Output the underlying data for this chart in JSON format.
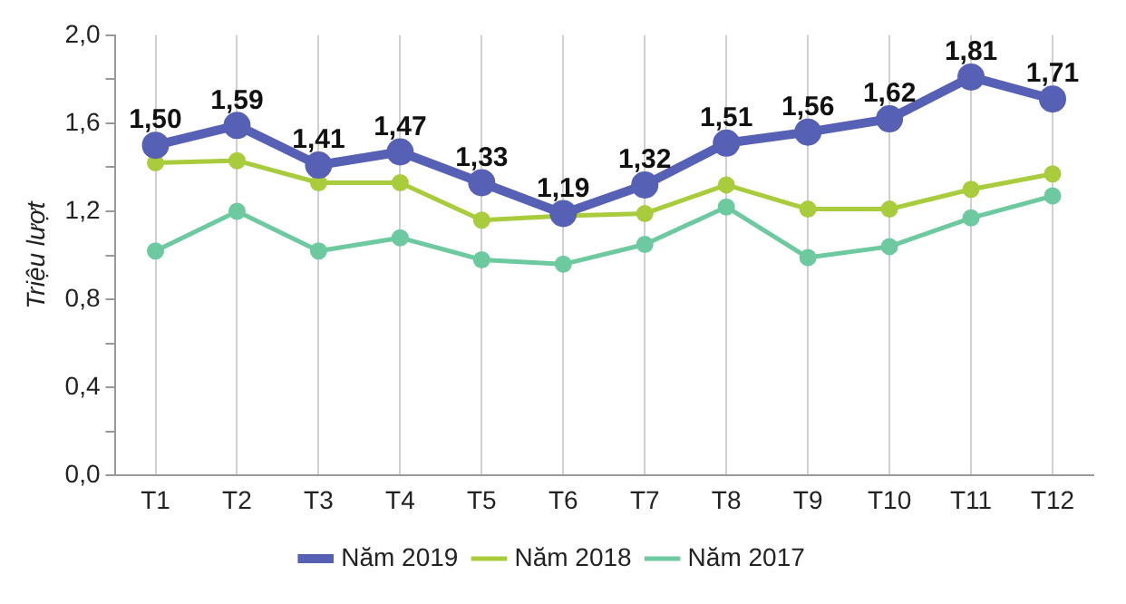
{
  "chart_data": {
    "type": "line",
    "ylabel": "Triệu lượt",
    "categories": [
      "T1",
      "T2",
      "T3",
      "T4",
      "T5",
      "T6",
      "T7",
      "T8",
      "T9",
      "T10",
      "T11",
      "T12"
    ],
    "series": [
      {
        "name": "Năm 2019",
        "color": "#5660b4",
        "values": [
          1.5,
          1.59,
          1.41,
          1.47,
          1.33,
          1.19,
          1.32,
          1.51,
          1.56,
          1.62,
          1.81,
          1.71
        ],
        "value_labels": [
          "1,50",
          "1,59",
          "1,41",
          "1,47",
          "1,33",
          "1,19",
          "1,32",
          "1,51",
          "1,56",
          "1,62",
          "1,81",
          "1,71"
        ]
      },
      {
        "name": "Năm 2018",
        "color": "#a8cc3c",
        "values": [
          1.42,
          1.43,
          1.33,
          1.33,
          1.16,
          1.18,
          1.19,
          1.32,
          1.21,
          1.21,
          1.3,
          1.37
        ]
      },
      {
        "name": "Năm 2017",
        "color": "#6cc9a0",
        "values": [
          1.02,
          1.2,
          1.02,
          1.08,
          0.98,
          0.96,
          1.05,
          1.22,
          0.99,
          1.04,
          1.17,
          1.27
        ]
      }
    ],
    "ylim": [
      0,
      2.0
    ],
    "yticks": [
      {
        "value": 0,
        "label": "0,0"
      },
      {
        "value": 0.2,
        "label": null
      },
      {
        "value": 0.4,
        "label": "0,4"
      },
      {
        "value": 0.6,
        "label": null
      },
      {
        "value": 0.8,
        "label": "0,8"
      },
      {
        "value": 1.0,
        "label": null
      },
      {
        "value": 1.2,
        "label": "1,2"
      },
      {
        "value": 1.4,
        "label": null
      },
      {
        "value": 1.6,
        "label": "1,6"
      },
      {
        "value": 1.8,
        "label": null
      },
      {
        "value": 2.0,
        "label": "2,0"
      }
    ],
    "grid": "x",
    "legend": "bottom",
    "marker": "circle",
    "line_style": "solid"
  }
}
